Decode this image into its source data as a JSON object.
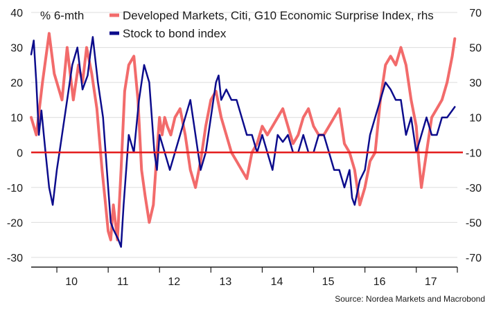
{
  "chart_data": {
    "type": "line",
    "title": "",
    "unit_label": "% 6-mth",
    "source": "Source: Nordea Markets and Macrobond",
    "x_tick_labels": [
      "10",
      "11",
      "12",
      "13",
      "14",
      "15",
      "16",
      "17"
    ],
    "x_range": [
      2009.5,
      2017.8
    ],
    "ylim_left": [
      -30,
      40
    ],
    "ylim_right": [
      -70,
      70
    ],
    "y_ticks_left": [
      40,
      30,
      20,
      10,
      0,
      -10,
      -20,
      -30
    ],
    "y_ticks_right": [
      70,
      50,
      30,
      10,
      -10,
      -30,
      -50,
      -70
    ],
    "zero_line": 0,
    "colors": {
      "stock_bond": "#0c0c8c",
      "surprise": "#f26b6b",
      "zero": "#e41b1b",
      "grid": "#dcdcdc"
    },
    "series": [
      {
        "name": "Developed Markets, Citi, G10 Economic Surprise Index, rhs",
        "axis": "right",
        "x": [
          2009.5,
          2009.6,
          2009.72,
          2009.85,
          2009.95,
          2010.1,
          2010.2,
          2010.32,
          2010.42,
          2010.5,
          2010.58,
          2010.68,
          2010.78,
          2010.88,
          2010.95,
          2011.0,
          2011.05,
          2011.1,
          2011.18,
          2011.25,
          2011.32,
          2011.4,
          2011.5,
          2011.58,
          2011.65,
          2011.72,
          2011.8,
          2011.88,
          2011.95,
          2012.0,
          2012.05,
          2012.1,
          2012.15,
          2012.22,
          2012.3,
          2012.4,
          2012.5,
          2012.6,
          2012.7,
          2012.8,
          2012.9,
          2013.0,
          2013.1,
          2013.2,
          2013.3,
          2013.4,
          2013.5,
          2013.6,
          2013.7,
          2013.8,
          2013.9,
          2014.0,
          2014.1,
          2014.2,
          2014.3,
          2014.4,
          2014.5,
          2014.6,
          2014.7,
          2014.8,
          2014.9,
          2015.0,
          2015.1,
          2015.2,
          2015.3,
          2015.4,
          2015.5,
          2015.6,
          2015.7,
          2015.8,
          2015.9,
          2016.0,
          2016.1,
          2016.2,
          2016.3,
          2016.4,
          2016.5,
          2016.6,
          2016.7,
          2016.8,
          2016.9,
          2017.0,
          2017.05,
          2017.1,
          2017.15,
          2017.2,
          2017.3,
          2017.4,
          2017.5,
          2017.6,
          2017.7,
          2017.75
        ],
        "values": [
          10,
          0,
          30,
          58,
          35,
          20,
          50,
          20,
          40,
          30,
          50,
          35,
          15,
          -20,
          -40,
          -55,
          -60,
          -40,
          -60,
          -20,
          25,
          40,
          45,
          20,
          -20,
          -35,
          -50,
          -40,
          -10,
          10,
          0,
          10,
          5,
          0,
          10,
          15,
          0,
          -20,
          -30,
          -15,
          5,
          20,
          25,
          10,
          0,
          -10,
          -15,
          -20,
          -25,
          -10,
          -5,
          5,
          0,
          5,
          10,
          15,
          5,
          -5,
          0,
          10,
          15,
          5,
          0,
          0,
          5,
          10,
          15,
          -5,
          -10,
          -20,
          -40,
          -30,
          -15,
          -10,
          20,
          40,
          45,
          40,
          50,
          40,
          20,
          5,
          -15,
          -30,
          -20,
          -10,
          10,
          15,
          20,
          30,
          45,
          55
        ]
      },
      {
        "name": "Stock to bond index",
        "axis": "left",
        "x": [
          2009.5,
          2009.55,
          2009.6,
          2009.65,
          2009.7,
          2009.78,
          2009.85,
          2009.92,
          2010.0,
          2010.05,
          2010.1,
          2010.2,
          2010.3,
          2010.4,
          2010.5,
          2010.6,
          2010.65,
          2010.7,
          2010.8,
          2010.9,
          2010.95,
          2011.0,
          2011.05,
          2011.1,
          2011.2,
          2011.25,
          2011.3,
          2011.35,
          2011.4,
          2011.5,
          2011.6,
          2011.7,
          2011.8,
          2011.9,
          2011.95,
          2012.0,
          2012.1,
          2012.2,
          2012.3,
          2012.4,
          2012.5,
          2012.6,
          2012.7,
          2012.8,
          2012.9,
          2013.0,
          2013.1,
          2013.15,
          2013.2,
          2013.3,
          2013.4,
          2013.5,
          2013.6,
          2013.7,
          2013.8,
          2013.9,
          2014.0,
          2014.1,
          2014.2,
          2014.3,
          2014.4,
          2014.5,
          2014.6,
          2014.7,
          2014.8,
          2014.9,
          2015.0,
          2015.1,
          2015.2,
          2015.3,
          2015.4,
          2015.5,
          2015.6,
          2015.7,
          2015.75,
          2015.8,
          2015.9,
          2016.0,
          2016.1,
          2016.2,
          2016.3,
          2016.4,
          2016.5,
          2016.6,
          2016.7,
          2016.8,
          2016.9,
          2017.0,
          2017.1,
          2017.2,
          2017.3,
          2017.4,
          2017.5,
          2017.6,
          2017.7,
          2017.75
        ],
        "values": [
          28,
          32,
          20,
          5,
          12,
          0,
          -10,
          -15,
          -5,
          0,
          5,
          15,
          25,
          30,
          18,
          22,
          28,
          33,
          20,
          10,
          0,
          -10,
          -20,
          -22,
          -25,
          -27,
          -15,
          -5,
          5,
          0,
          15,
          25,
          20,
          0,
          -5,
          5,
          0,
          -5,
          0,
          5,
          10,
          15,
          5,
          -5,
          0,
          10,
          20,
          22,
          15,
          18,
          15,
          15,
          10,
          5,
          5,
          0,
          5,
          0,
          -5,
          5,
          3,
          5,
          0,
          0,
          5,
          0,
          0,
          5,
          5,
          0,
          -5,
          -5,
          -10,
          -5,
          -13,
          -15,
          -8,
          -5,
          5,
          10,
          15,
          20,
          18,
          15,
          15,
          5,
          10,
          0,
          5,
          10,
          5,
          5,
          10,
          10,
          12,
          13
        ]
      }
    ]
  }
}
